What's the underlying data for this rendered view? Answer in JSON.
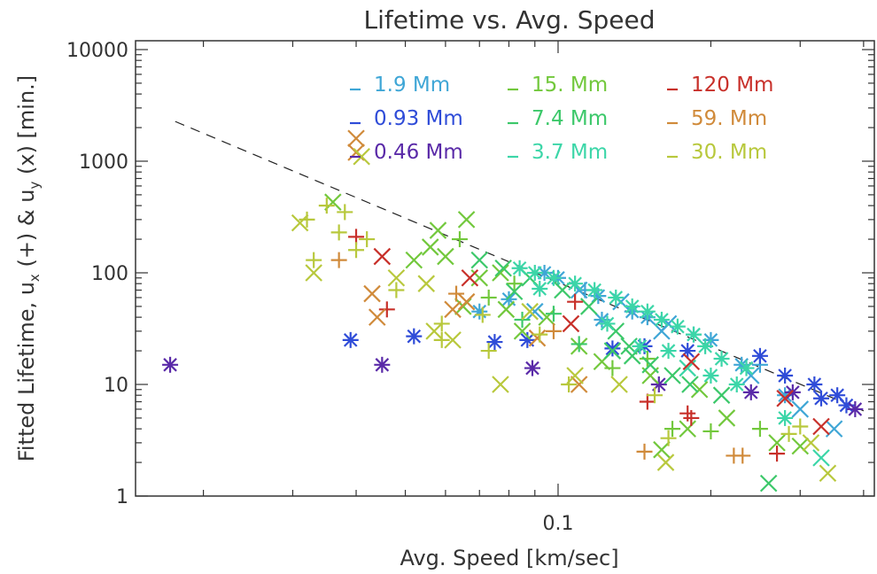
{
  "chart_data": {
    "type": "scatter",
    "title": "Lifetime vs. Avg. Speed",
    "xlabel": "Avg. Speed [km/sec]",
    "ylabel": "Fitted Lifetime, u_x (+) & u_y (x) [min.]",
    "ylabel_parts": {
      "a": "Fitted Lifetime, u",
      "sub1": "x",
      "b": " (+) & u",
      "sub2": "y",
      "c": " (x) [min.]"
    },
    "xscale": "log",
    "yscale": "log",
    "xlim": [
      0.0147,
      0.42
    ],
    "ylim": [
      1,
      12000
    ],
    "grid": false,
    "legend_position": "top",
    "x_tick_labels": [
      {
        "value": 0.1,
        "label": "0.1"
      }
    ],
    "y_tick_labels": [
      {
        "value": 1,
        "label": "1"
      },
      {
        "value": 10,
        "label": "10"
      },
      {
        "value": 100,
        "label": "100"
      },
      {
        "value": 1000,
        "label": "1000"
      },
      {
        "value": 10000,
        "label": "10000"
      }
    ],
    "reference_line": {
      "style": "dashed",
      "color": "#222222",
      "x": [
        0.0176,
        0.4
      ],
      "y": [
        2270,
        5.8
      ]
    },
    "marker_key": {
      "plus": "u_x",
      "x": "u_y",
      "asterisk": "both"
    },
    "series": [
      {
        "name": "1.9 Mm",
        "color": "#3fa6d6",
        "points": [
          [
            0.094,
            100,
            "s"
          ],
          [
            0.1,
            90,
            "s"
          ],
          [
            0.11,
            70,
            "x"
          ],
          [
            0.12,
            62,
            "s"
          ],
          [
            0.133,
            55,
            "x"
          ],
          [
            0.14,
            45,
            "s"
          ],
          [
            0.15,
            40,
            "s"
          ],
          [
            0.165,
            35,
            "x"
          ],
          [
            0.185,
            28,
            "s"
          ],
          [
            0.2,
            25,
            "s"
          ],
          [
            0.23,
            15,
            "s"
          ],
          [
            0.24,
            12,
            "x"
          ],
          [
            0.28,
            8,
            "s"
          ],
          [
            0.3,
            6,
            "x"
          ],
          [
            0.35,
            4,
            "x"
          ],
          [
            0.08,
            58,
            "s"
          ],
          [
            0.09,
            45,
            "x"
          ],
          [
            0.113,
            70,
            "+"
          ],
          [
            0.16,
            30,
            "x"
          ],
          [
            0.25,
            15,
            "+"
          ],
          [
            0.07,
            45,
            "s"
          ],
          [
            0.122,
            38,
            "s"
          ]
        ]
      },
      {
        "name": "0.93 Mm",
        "color": "#2f4cd8",
        "points": [
          [
            0.039,
            25,
            "s"
          ],
          [
            0.052,
            27,
            "s"
          ],
          [
            0.075,
            24,
            "s"
          ],
          [
            0.087,
            25,
            "s"
          ],
          [
            0.128,
            21,
            "s"
          ],
          [
            0.148,
            22,
            "s"
          ],
          [
            0.18,
            20,
            "s"
          ],
          [
            0.25,
            18,
            "s"
          ],
          [
            0.28,
            12,
            "s"
          ],
          [
            0.32,
            10,
            "s"
          ],
          [
            0.355,
            8,
            "s"
          ],
          [
            0.37,
            6.5,
            "s"
          ],
          [
            0.33,
            7.5,
            "s"
          ]
        ]
      },
      {
        "name": "0.46 Mm",
        "color": "#5a2aa8",
        "points": [
          [
            0.0172,
            15,
            "s"
          ],
          [
            0.045,
            15,
            "s"
          ],
          [
            0.089,
            14,
            "s"
          ],
          [
            0.158,
            10,
            "s"
          ],
          [
            0.24,
            8.5,
            "s"
          ],
          [
            0.29,
            8.5,
            "s"
          ],
          [
            0.385,
            6,
            "s"
          ]
        ]
      },
      {
        "name": "15. Mm",
        "color": "#72c83c",
        "points": [
          [
            0.036,
            430,
            "x"
          ],
          [
            0.066,
            300,
            "x"
          ],
          [
            0.058,
            240,
            "x"
          ],
          [
            0.056,
            170,
            "x"
          ],
          [
            0.064,
            200,
            "+"
          ],
          [
            0.052,
            130,
            "x"
          ],
          [
            0.077,
            100,
            "x"
          ],
          [
            0.07,
            90,
            "x"
          ],
          [
            0.082,
            80,
            "+"
          ],
          [
            0.095,
            40,
            "x"
          ],
          [
            0.11,
            22,
            "x"
          ],
          [
            0.122,
            16,
            "x"
          ],
          [
            0.152,
            12,
            "x"
          ],
          [
            0.19,
            9,
            "x"
          ],
          [
            0.215,
            5,
            "x"
          ],
          [
            0.25,
            4,
            "+"
          ],
          [
            0.18,
            4,
            "x"
          ],
          [
            0.16,
            2.6,
            "x"
          ],
          [
            0.27,
            3,
            "x"
          ],
          [
            0.3,
            2.8,
            "x"
          ],
          [
            0.15,
            17,
            "+"
          ],
          [
            0.085,
            30,
            "x"
          ],
          [
            0.073,
            60,
            "+"
          ],
          [
            0.06,
            140,
            "x"
          ],
          [
            0.079,
            47,
            "x"
          ],
          [
            0.128,
            14,
            "+"
          ],
          [
            0.168,
            4,
            "+"
          ],
          [
            0.2,
            3.8,
            "+"
          ],
          [
            0.065,
            50,
            "x"
          ]
        ]
      },
      {
        "name": "7.4 Mm",
        "color": "#3cc86a",
        "points": [
          [
            0.07,
            130,
            "x"
          ],
          [
            0.078,
            110,
            "x"
          ],
          [
            0.088,
            90,
            "x"
          ],
          [
            0.102,
            70,
            "x"
          ],
          [
            0.115,
            50,
            "x"
          ],
          [
            0.13,
            30,
            "x"
          ],
          [
            0.138,
            22,
            "x"
          ],
          [
            0.152,
            15,
            "x"
          ],
          [
            0.168,
            12,
            "x"
          ],
          [
            0.182,
            10,
            "x"
          ],
          [
            0.21,
            8,
            "x"
          ],
          [
            0.26,
            1.3,
            "x"
          ],
          [
            0.085,
            38,
            "+"
          ],
          [
            0.082,
            68,
            "x"
          ],
          [
            0.098,
            43,
            "+"
          ],
          [
            0.11,
            23,
            "+"
          ],
          [
            0.128,
            20,
            "x"
          ],
          [
            0.14,
            18,
            "x"
          ]
        ]
      },
      {
        "name": "3.7 Mm",
        "color": "#3cd6a8",
        "points": [
          [
            0.084,
            110,
            "s"
          ],
          [
            0.09,
            100,
            "s"
          ],
          [
            0.098,
            90,
            "s"
          ],
          [
            0.108,
            80,
            "s"
          ],
          [
            0.118,
            70,
            "s"
          ],
          [
            0.13,
            60,
            "s"
          ],
          [
            0.14,
            50,
            "s"
          ],
          [
            0.15,
            45,
            "s"
          ],
          [
            0.16,
            38,
            "s"
          ],
          [
            0.172,
            33,
            "s"
          ],
          [
            0.185,
            28,
            "s"
          ],
          [
            0.195,
            22,
            "s"
          ],
          [
            0.21,
            17,
            "s"
          ],
          [
            0.235,
            14,
            "s"
          ],
          [
            0.145,
            22,
            "s"
          ],
          [
            0.165,
            20,
            "s"
          ],
          [
            0.2,
            12,
            "s"
          ],
          [
            0.225,
            10,
            "s"
          ],
          [
            0.28,
            5,
            "s"
          ],
          [
            0.33,
            2.2,
            "x"
          ],
          [
            0.092,
            72,
            "s"
          ],
          [
            0.125,
            35,
            "s"
          ],
          [
            0.18,
            14,
            "x"
          ]
        ]
      },
      {
        "name": "120 Mm",
        "color": "#c8302a",
        "points": [
          [
            0.04,
            210,
            "+"
          ],
          [
            0.045,
            140,
            "x"
          ],
          [
            0.067,
            90,
            "x"
          ],
          [
            0.046,
            47,
            "+"
          ],
          [
            0.108,
            55,
            "+"
          ],
          [
            0.106,
            35,
            "x"
          ],
          [
            0.15,
            7,
            "+"
          ],
          [
            0.183,
            16,
            "x"
          ],
          [
            0.183,
            5,
            "+"
          ],
          [
            0.18,
            5.5,
            "+"
          ],
          [
            0.27,
            2.4,
            "+"
          ],
          [
            0.28,
            7.5,
            "x"
          ],
          [
            0.33,
            4.2,
            "x"
          ]
        ]
      },
      {
        "name": "59. Mm",
        "color": "#d08a3a",
        "points": [
          [
            0.04,
            1600,
            "x"
          ],
          [
            0.04,
            1200,
            "x"
          ],
          [
            0.037,
            130,
            "+"
          ],
          [
            0.043,
            65,
            "x"
          ],
          [
            0.044,
            40,
            "x"
          ],
          [
            0.063,
            65,
            "+"
          ],
          [
            0.066,
            55,
            "x"
          ],
          [
            0.091,
            26,
            "x"
          ],
          [
            0.098,
            30,
            "+"
          ],
          [
            0.11,
            10,
            "x"
          ],
          [
            0.148,
            2.5,
            "+"
          ],
          [
            0.222,
            2.3,
            "+"
          ],
          [
            0.231,
            2.3,
            "+"
          ],
          [
            0.062,
            47,
            "x"
          ]
        ]
      },
      {
        "name": "30. Mm",
        "color": "#b8c83c",
        "points": [
          [
            0.041,
            1100,
            "x"
          ],
          [
            0.031,
            280,
            "x"
          ],
          [
            0.032,
            300,
            "+"
          ],
          [
            0.035,
            400,
            "+"
          ],
          [
            0.037,
            230,
            "+"
          ],
          [
            0.038,
            350,
            "+"
          ],
          [
            0.033,
            130,
            "+"
          ],
          [
            0.033,
            100,
            "x"
          ],
          [
            0.04,
            160,
            "+"
          ],
          [
            0.042,
            200,
            "+"
          ],
          [
            0.048,
            90,
            "x"
          ],
          [
            0.048,
            70,
            "+"
          ],
          [
            0.055,
            80,
            "x"
          ],
          [
            0.057,
            30,
            "x"
          ],
          [
            0.059,
            35,
            "+"
          ],
          [
            0.062,
            25,
            "x"
          ],
          [
            0.073,
            20,
            "+"
          ],
          [
            0.077,
            10,
            "x"
          ],
          [
            0.092,
            28,
            "+"
          ],
          [
            0.105,
            10,
            "+"
          ],
          [
            0.108,
            12,
            "x"
          ],
          [
            0.132,
            10,
            "x"
          ],
          [
            0.155,
            8,
            "+"
          ],
          [
            0.163,
            2.0,
            "x"
          ],
          [
            0.165,
            3.3,
            "+"
          ],
          [
            0.3,
            4.2,
            "+"
          ],
          [
            0.315,
            3.0,
            "x"
          ],
          [
            0.285,
            3.6,
            "+"
          ],
          [
            0.34,
            1.6,
            "x"
          ],
          [
            0.088,
            45,
            "x"
          ],
          [
            0.071,
            42,
            "+"
          ],
          [
            0.059,
            25,
            "+"
          ]
        ]
      }
    ]
  }
}
